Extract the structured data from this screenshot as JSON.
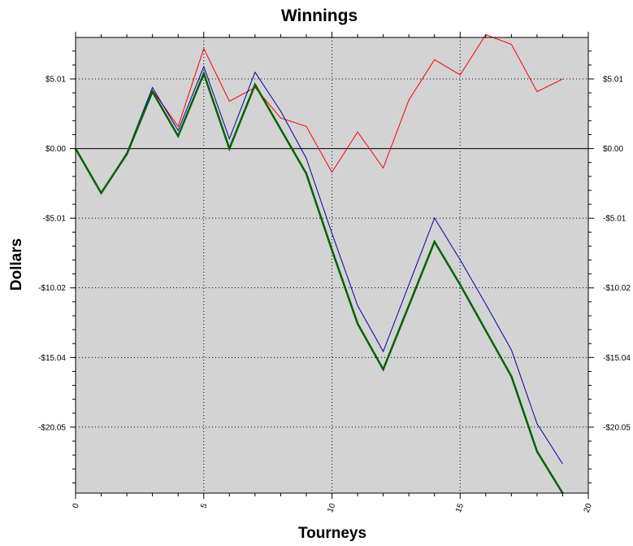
{
  "chart_data": {
    "type": "line",
    "title": "Winnings",
    "xlabel": "Tourneys",
    "ylabel": "Dollars",
    "xlim": [
      0,
      20
    ],
    "ylim": [
      -24.8,
      8.0
    ],
    "x_ticks": [
      0,
      5,
      10,
      15,
      20
    ],
    "x_tick_labels": [
      "0",
      "5",
      "10",
      "15",
      "20"
    ],
    "y_ticks": [
      5.01,
      0.0,
      -5.01,
      -10.02,
      -15.04,
      -20.05
    ],
    "y_tick_labels": [
      "$5.01",
      "$0.00",
      "-$5.01",
      "-$10.02",
      "-$15.04",
      "-$20.05"
    ],
    "grid": true,
    "legend": "none",
    "background": "#d3d3d3",
    "x": [
      0,
      1,
      2,
      3,
      4,
      5,
      6,
      7,
      8,
      9,
      10,
      11,
      12,
      13,
      14,
      15,
      16,
      17,
      18,
      19,
      20
    ],
    "series": [
      {
        "color": "#ff0000",
        "line_width": 1,
        "values": [
          0.0,
          -3.2,
          -0.3,
          4.2,
          1.6,
          7.2,
          3.4,
          4.4,
          2.2,
          1.6,
          -1.7,
          1.2,
          -1.4,
          3.5,
          6.4,
          5.3,
          8.2,
          7.5,
          4.1,
          5.0,
          null
        ]
      },
      {
        "color": "#0000aa",
        "line_width": 1,
        "values": [
          0.0,
          -3.2,
          -0.3,
          4.4,
          1.3,
          5.9,
          0.7,
          5.5,
          2.7,
          -0.7,
          -6.1,
          -11.3,
          -14.6,
          -9.8,
          -5.0,
          -8.0,
          -11.2,
          -14.5,
          -19.8,
          -22.7,
          null
        ]
      },
      {
        "color": "#006400",
        "line_width": 2.5,
        "values": [
          0.0,
          -3.2,
          -0.4,
          4.1,
          0.9,
          5.4,
          0.0,
          4.6,
          1.4,
          -1.8,
          -7.3,
          -12.6,
          -15.9,
          -11.3,
          -6.7,
          -9.8,
          -13.1,
          -16.4,
          -21.8,
          -24.8,
          null
        ]
      }
    ]
  }
}
